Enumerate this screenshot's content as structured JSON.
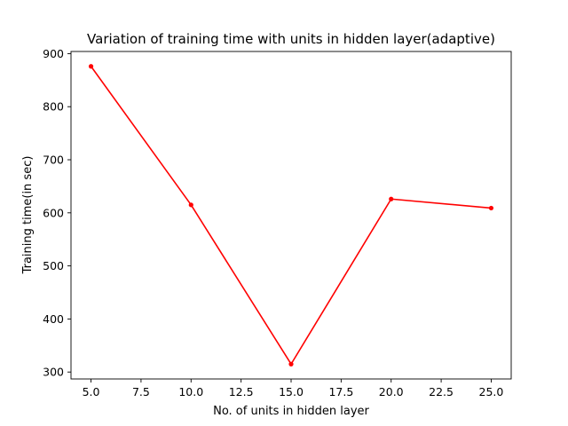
{
  "chart_data": {
    "type": "line",
    "title": "Variation of training time with units in hidden layer(adaptive)",
    "xlabel": "No. of units in hidden layer",
    "ylabel": "Training time(in sec)",
    "x": [
      5,
      10,
      15,
      20,
      25
    ],
    "series": [
      {
        "values": [
          876,
          615,
          315,
          626,
          609
        ],
        "color": "#ff0000",
        "marker": "circle"
      }
    ],
    "xlim": [
      4,
      26
    ],
    "ylim": [
      286.95,
      904.05
    ],
    "xticks": [
      {
        "value": 5,
        "label": "5.0"
      },
      {
        "value": 7.5,
        "label": "7.5"
      },
      {
        "value": 10,
        "label": "10.0"
      },
      {
        "value": 12.5,
        "label": "12.5"
      },
      {
        "value": 15,
        "label": "15.0"
      },
      {
        "value": 17.5,
        "label": "17.5"
      },
      {
        "value": 20,
        "label": "20.0"
      },
      {
        "value": 22.5,
        "label": "22.5"
      },
      {
        "value": 25,
        "label": "25.0"
      }
    ],
    "yticks": [
      {
        "value": 300,
        "label": "300"
      },
      {
        "value": 400,
        "label": "400"
      },
      {
        "value": 500,
        "label": "500"
      },
      {
        "value": 600,
        "label": "600"
      },
      {
        "value": 700,
        "label": "700"
      },
      {
        "value": 800,
        "label": "800"
      },
      {
        "value": 900,
        "label": "900"
      }
    ],
    "grid": false,
    "legend": "none"
  }
}
